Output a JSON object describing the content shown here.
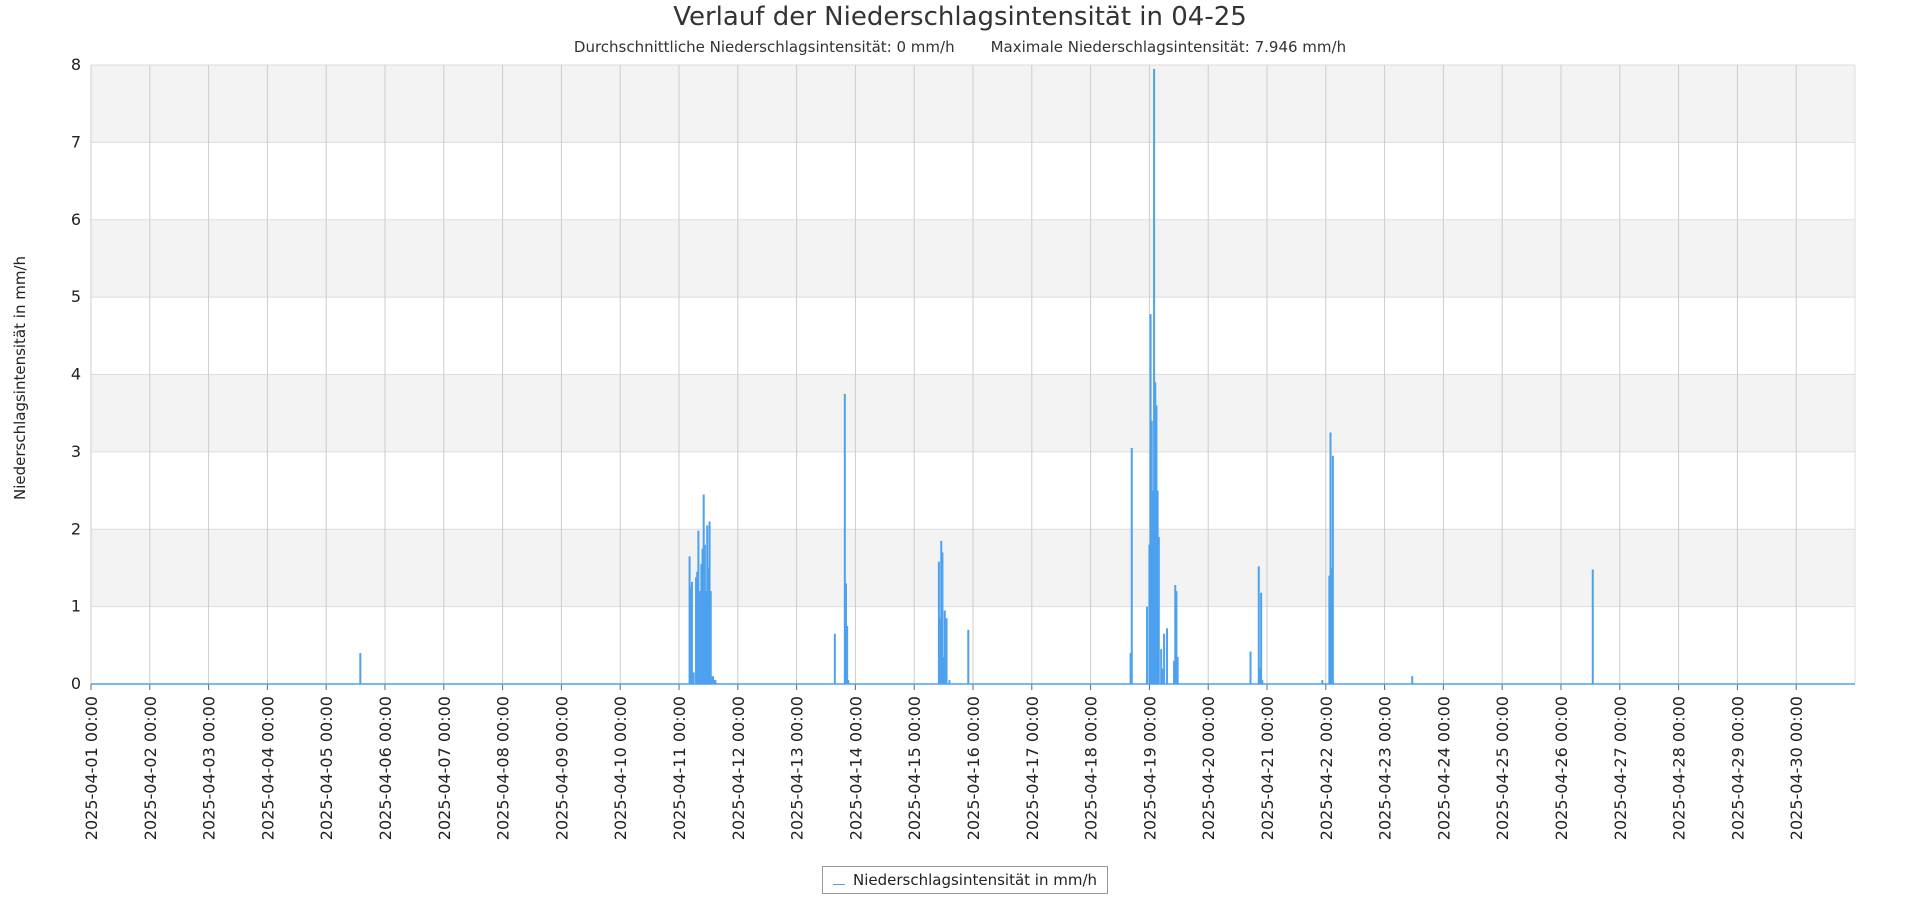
{
  "chart_data": {
    "type": "line",
    "title": "Verlauf der Niederschlagsintensität in 04-25",
    "subtitle_avg": "Durchschnittliche Niederschlagsintensität: 0 mm/h",
    "subtitle_max": "Maximale Niederschlagsintensität: 7.946 mm/h",
    "xlabel": "",
    "ylabel": "Niederschlagsintensität in mm/h",
    "ylim": [
      0,
      8
    ],
    "yticks": [
      0,
      1,
      2,
      3,
      4,
      5,
      6,
      7,
      8
    ],
    "xlim_days": [
      0,
      30
    ],
    "xtick_labels": [
      "2025-04-01 00:00",
      "2025-04-02 00:00",
      "2025-04-03 00:00",
      "2025-04-04 00:00",
      "2025-04-05 00:00",
      "2025-04-06 00:00",
      "2025-04-07 00:00",
      "2025-04-08 00:00",
      "2025-04-09 00:00",
      "2025-04-10 00:00",
      "2025-04-11 00:00",
      "2025-04-12 00:00",
      "2025-04-13 00:00",
      "2025-04-14 00:00",
      "2025-04-15 00:00",
      "2025-04-16 00:00",
      "2025-04-17 00:00",
      "2025-04-18 00:00",
      "2025-04-19 00:00",
      "2025-04-20 00:00",
      "2025-04-21 00:00",
      "2025-04-22 00:00",
      "2025-04-23 00:00",
      "2025-04-24 00:00",
      "2025-04-25 00:00",
      "2025-04-26 00:00",
      "2025-04-27 00:00",
      "2025-04-28 00:00",
      "2025-04-29 00:00",
      "2025-04-30 00:00"
    ],
    "grid": true,
    "legend_position": "bottom-center",
    "series": [
      {
        "name": "Niederschlagsintensität in mm/h",
        "color": "#4da1ee",
        "x_days": [
          4.58,
          10.18,
          10.2,
          10.22,
          10.25,
          10.29,
          10.31,
          10.33,
          10.36,
          10.38,
          10.4,
          10.42,
          10.44,
          10.46,
          10.48,
          10.5,
          10.52,
          10.54,
          10.56,
          10.58,
          10.6,
          10.62,
          12.65,
          12.82,
          12.84,
          12.86,
          12.88,
          14.42,
          14.44,
          14.46,
          14.48,
          14.5,
          14.52,
          14.55,
          14.6,
          14.92,
          17.68,
          17.7,
          17.96,
          18.0,
          18.02,
          18.04,
          18.06,
          18.08,
          18.1,
          18.12,
          18.14,
          18.16,
          18.2,
          18.22,
          18.25,
          18.3,
          18.42,
          18.44,
          18.46,
          18.48,
          19.72,
          19.86,
          19.88,
          19.9,
          19.92,
          20.94,
          21.06,
          21.08,
          21.1,
          21.12,
          22.47,
          25.54
        ],
        "values": [
          0.4,
          1.65,
          1.25,
          1.32,
          0.15,
          1.38,
          1.45,
          1.98,
          1.2,
          1.55,
          1.75,
          2.45,
          1.8,
          1.2,
          2.05,
          1.5,
          2.1,
          1.2,
          0.1,
          0.1,
          0.05,
          0.05,
          0.65,
          3.75,
          1.3,
          0.75,
          0.05,
          1.58,
          0.85,
          1.85,
          1.7,
          0.35,
          0.95,
          0.85,
          0.05,
          0.7,
          0.4,
          3.05,
          1.0,
          1.8,
          4.78,
          3.4,
          2.5,
          7.95,
          3.9,
          3.6,
          2.5,
          1.9,
          0.45,
          0.2,
          0.65,
          0.72,
          0.3,
          1.28,
          1.2,
          0.35,
          0.42,
          1.52,
          0.2,
          1.18,
          0.05,
          0.05,
          1.4,
          3.25,
          1.5,
          2.95,
          0.1,
          1.48
        ]
      }
    ]
  }
}
